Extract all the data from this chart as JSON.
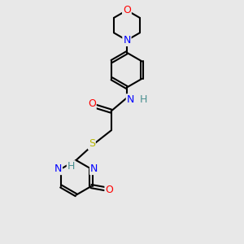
{
  "bg_color": "#e8e8e8",
  "atom_colors": {
    "C": "#000000",
    "N": "#0000ff",
    "O": "#ff0000",
    "S": "#b8b800",
    "H": "#4a9090"
  },
  "bond_color": "#000000",
  "bond_width": 1.5,
  "font_size_atom": 9,
  "font_size_H": 9
}
